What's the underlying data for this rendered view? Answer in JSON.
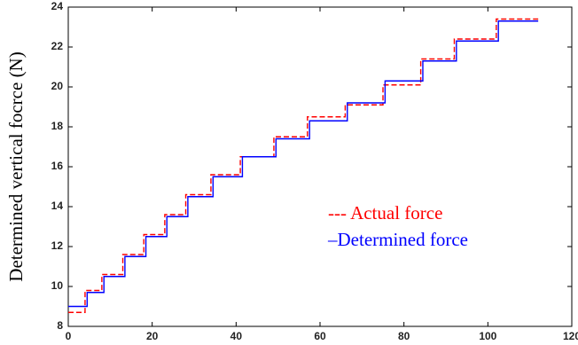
{
  "chart_data": {
    "type": "line",
    "ylabel": "Determined vertical focrce (N)",
    "xlim": [
      0,
      120
    ],
    "xticks": [
      0,
      20,
      40,
      60,
      80,
      100,
      120
    ],
    "ylim": [
      8,
      24
    ],
    "yticks": [
      8,
      10,
      12,
      14,
      16,
      18,
      20,
      22,
      24
    ],
    "grid": false,
    "series": [
      {
        "name": "--- Actual force",
        "color": "#ff0000",
        "dash": "dashed",
        "x": [
          0,
          4,
          4,
          8,
          8,
          13,
          13,
          18,
          18,
          23,
          23,
          28,
          28,
          34,
          34,
          41,
          41,
          49,
          49,
          57,
          57,
          66,
          66,
          75,
          75,
          84,
          84,
          92,
          92,
          102,
          102,
          112
        ],
        "values": [
          8.7,
          8.7,
          9.8,
          9.8,
          10.6,
          10.6,
          11.6,
          11.6,
          12.6,
          12.6,
          13.6,
          13.6,
          14.6,
          14.6,
          15.6,
          15.6,
          16.5,
          16.5,
          17.5,
          17.5,
          18.5,
          18.5,
          19.1,
          19.1,
          20.1,
          20.1,
          21.4,
          21.4,
          22.4,
          22.4,
          23.4,
          23.4
        ]
      },
      {
        "name": "–Determined force",
        "color": "#0000ff",
        "dash": "solid",
        "x": [
          0,
          4.5,
          4.5,
          8.5,
          8.5,
          13.5,
          13.5,
          18.5,
          18.5,
          23.5,
          23.5,
          28.5,
          28.5,
          34.5,
          34.5,
          41.5,
          41.5,
          49.5,
          49.5,
          57.5,
          57.5,
          66.5,
          66.5,
          75.5,
          75.5,
          84.5,
          84.5,
          92.5,
          92.5,
          102.5,
          102.5,
          112
        ],
        "values": [
          9.0,
          9.0,
          9.7,
          9.7,
          10.5,
          10.5,
          11.5,
          11.5,
          12.5,
          12.5,
          13.5,
          13.5,
          14.5,
          14.5,
          15.5,
          15.5,
          16.5,
          16.5,
          17.4,
          17.4,
          18.3,
          18.3,
          19.2,
          19.2,
          20.3,
          20.3,
          21.3,
          21.3,
          22.3,
          22.3,
          23.3,
          23.3
        ]
      }
    ]
  }
}
